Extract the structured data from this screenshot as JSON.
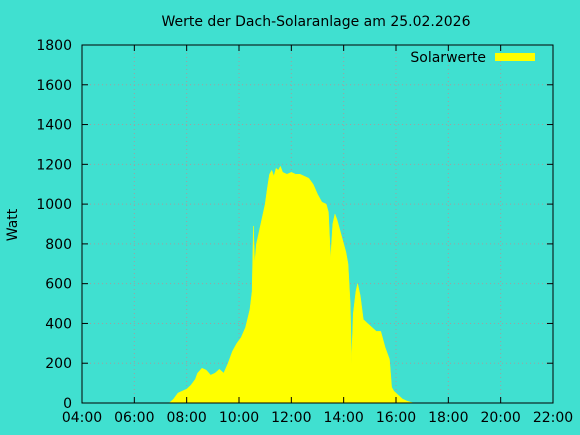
{
  "chart_data": {
    "type": "area",
    "title": "Werte der Dach-Solaranlage am 25.02.2026",
    "ylabel": "Watt",
    "xlabel": "",
    "x_tick_labels": [
      "04:00",
      "06:00",
      "08:00",
      "10:00",
      "12:00",
      "14:00",
      "16:00",
      "18:00",
      "20:00",
      "22:00"
    ],
    "x_ticks_hours": [
      4,
      6,
      8,
      10,
      12,
      14,
      16,
      18,
      20,
      22
    ],
    "y_ticks": [
      0,
      200,
      400,
      600,
      800,
      1000,
      1200,
      1400,
      1600,
      1800
    ],
    "xlim_hours": [
      4,
      22
    ],
    "ylim": [
      0,
      1800
    ],
    "grid": true,
    "legend_position": "top-right",
    "series": [
      {
        "name": "Solarwerte",
        "color": "#ffff00",
        "points": [
          [
            "07:20",
            0
          ],
          [
            "07:30",
            20
          ],
          [
            "07:40",
            50
          ],
          [
            "07:50",
            60
          ],
          [
            "08:00",
            70
          ],
          [
            "08:10",
            90
          ],
          [
            "08:20",
            120
          ],
          [
            "08:25",
            150
          ],
          [
            "08:35",
            175
          ],
          [
            "08:45",
            165
          ],
          [
            "08:55",
            140
          ],
          [
            "09:05",
            150
          ],
          [
            "09:15",
            170
          ],
          [
            "09:25",
            150
          ],
          [
            "09:35",
            200
          ],
          [
            "09:45",
            260
          ],
          [
            "09:55",
            300
          ],
          [
            "10:05",
            330
          ],
          [
            "10:15",
            380
          ],
          [
            "10:25",
            470
          ],
          [
            "10:30",
            560
          ],
          [
            "10:33",
            890
          ],
          [
            "10:36",
            700
          ],
          [
            "10:40",
            800
          ],
          [
            "10:45",
            850
          ],
          [
            "10:50",
            900
          ],
          [
            "11:00",
            1000
          ],
          [
            "11:05",
            1080
          ],
          [
            "11:10",
            1150
          ],
          [
            "11:15",
            1170
          ],
          [
            "11:20",
            1140
          ],
          [
            "11:25",
            1180
          ],
          [
            "11:30",
            1170
          ],
          [
            "11:35",
            1190
          ],
          [
            "11:40",
            1160
          ],
          [
            "11:50",
            1150
          ],
          [
            "12:00",
            1160
          ],
          [
            "12:10",
            1150
          ],
          [
            "12:20",
            1150
          ],
          [
            "12:30",
            1140
          ],
          [
            "12:40",
            1130
          ],
          [
            "12:50",
            1100
          ],
          [
            "13:00",
            1050
          ],
          [
            "13:10",
            1010
          ],
          [
            "13:20",
            1000
          ],
          [
            "13:25",
            960
          ],
          [
            "13:30",
            720
          ],
          [
            "13:35",
            900
          ],
          [
            "13:40",
            950
          ],
          [
            "13:45",
            920
          ],
          [
            "13:50",
            880
          ],
          [
            "13:55",
            840
          ],
          [
            "14:00",
            800
          ],
          [
            "14:05",
            760
          ],
          [
            "14:10",
            700
          ],
          [
            "14:15",
            500
          ],
          [
            "14:18",
            200
          ],
          [
            "14:22",
            450
          ],
          [
            "14:28",
            560
          ],
          [
            "14:32",
            600
          ],
          [
            "14:38",
            540
          ],
          [
            "14:45",
            420
          ],
          [
            "14:55",
            400
          ],
          [
            "15:05",
            380
          ],
          [
            "15:15",
            360
          ],
          [
            "15:25",
            360
          ],
          [
            "15:35",
            280
          ],
          [
            "15:45",
            220
          ],
          [
            "15:50",
            80
          ],
          [
            "15:55",
            60
          ],
          [
            "16:05",
            40
          ],
          [
            "16:15",
            20
          ],
          [
            "16:25",
            10
          ],
          [
            "16:40",
            0
          ]
        ]
      }
    ]
  }
}
